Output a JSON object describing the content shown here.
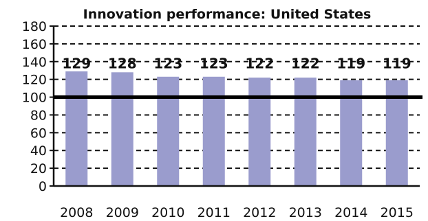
{
  "chart_data": {
    "type": "bar",
    "title": "Innovation performance: United States",
    "categories": [
      "2008",
      "2009",
      "2010",
      "2011",
      "2012",
      "2013",
      "2014",
      "2015"
    ],
    "values": [
      129,
      128,
      123,
      123,
      122,
      122,
      119,
      119
    ],
    "data_labels": [
      "129",
      "128",
      "123",
      "123",
      "122",
      "122",
      "119",
      "119"
    ],
    "ylim": [
      0,
      180
    ],
    "yticks": [
      "0",
      "20",
      "40",
      "60",
      "80",
      "100",
      "120",
      "140",
      "160",
      "180"
    ],
    "reference_line": 100,
    "grid": true,
    "bar_color": "#9a9ccd",
    "reference_line_color": "#000000"
  }
}
